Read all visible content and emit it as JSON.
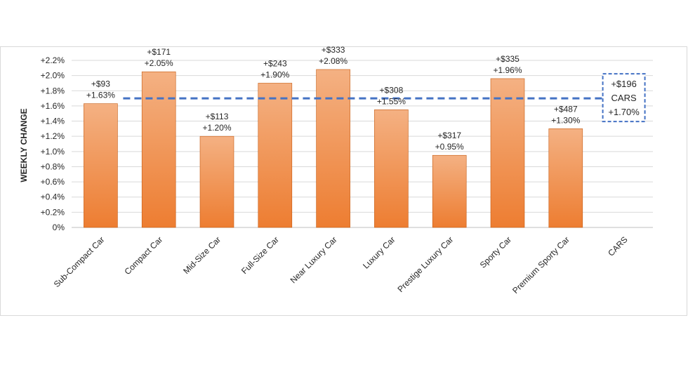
{
  "chart_data": {
    "type": "bar",
    "title": "",
    "xlabel": "",
    "ylabel": "WEEKLY CHANGE",
    "ylim": [
      0,
      2.2
    ],
    "grid": true,
    "legend": "none",
    "y_ticks": [
      "0%",
      "+0.2%",
      "+0.4%",
      "+0.6%",
      "+0.8%",
      "+1.0%",
      "+1.2%",
      "+1.4%",
      "+1.6%",
      "+1.8%",
      "+2.0%",
      "+2.2%"
    ],
    "categories": [
      "Sub-Compact Car",
      "Compact Car",
      "Mid-Size Car",
      "Full-Size Car",
      "Near Luxury Car",
      "Luxury Car",
      "Prestige Luxury Car",
      "Sporty Car",
      "Premium Sporty Car",
      "CARS"
    ],
    "values": [
      1.63,
      2.05,
      1.2,
      1.9,
      2.08,
      1.55,
      0.95,
      1.96,
      1.3,
      null
    ],
    "dollar_labels": [
      "+$93",
      "+$171",
      "+$113",
      "+$243",
      "+$333",
      "+$308",
      "+$317",
      "+$335",
      "+$487",
      ""
    ],
    "percent_labels": [
      "+1.63%",
      "+2.05%",
      "+1.20%",
      "+1.90%",
      "+2.08%",
      "+1.55%",
      "+0.95%",
      "+1.96%",
      "+1.30%",
      ""
    ],
    "average": {
      "value": 1.7,
      "dollar_label": "+$196",
      "name_label": "CARS",
      "percent_label": "+1.70%"
    },
    "colors": {
      "bar_top": "#f4b183",
      "bar_bottom": "#ed7d31",
      "bar_stroke": "#c55a11",
      "average_line": "#4472c4",
      "grid": "#d9d9d9",
      "frame": "#d9d9d9"
    }
  }
}
